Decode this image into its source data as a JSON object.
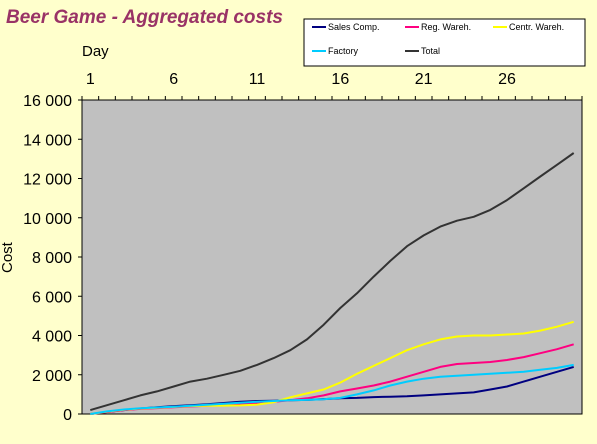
{
  "chart_data": {
    "type": "line",
    "title": "Beer Game - Aggregated  costs",
    "xlabel": "Day",
    "ylabel": "Cost",
    "x_ticks": [
      "1",
      "6",
      "11",
      "16",
      "21",
      "26"
    ],
    "y_ticks": [
      "0",
      "2 000",
      "4 000",
      "6 000",
      "8 000",
      "10 000",
      "12 000",
      "14 000",
      "16 000"
    ],
    "ylim": [
      0,
      16000
    ],
    "xlim": [
      1,
      30
    ],
    "x": [
      1,
      2,
      3,
      4,
      5,
      6,
      7,
      8,
      9,
      10,
      11,
      12,
      13,
      14,
      15,
      16,
      17,
      18,
      19,
      20,
      21,
      22,
      23,
      24,
      25,
      26,
      27,
      28,
      29,
      30
    ],
    "legend_position": "top-right",
    "series": [
      {
        "name": "Sales Comp.",
        "color": "#000080",
        "values": [
          0,
          100,
          200,
          280,
          340,
          400,
          450,
          500,
          560,
          620,
          660,
          680,
          700,
          720,
          760,
          800,
          820,
          860,
          880,
          900,
          950,
          1000,
          1050,
          1100,
          1250,
          1400,
          1650,
          1900,
          2150,
          2400
        ]
      },
      {
        "name": "Reg. Wareh.",
        "color": "#ff0080",
        "values": [
          0,
          100,
          200,
          260,
          300,
          340,
          380,
          420,
          460,
          500,
          560,
          620,
          700,
          800,
          950,
          1150,
          1300,
          1450,
          1650,
          1900,
          2150,
          2400,
          2550,
          2600,
          2650,
          2750,
          2900,
          3100,
          3300,
          3550
        ]
      },
      {
        "name": "Centr. Wareh.",
        "color": "#ffff00",
        "values": [
          0,
          120,
          220,
          280,
          320,
          360,
          400,
          420,
          430,
          440,
          480,
          600,
          850,
          1050,
          1250,
          1600,
          2050,
          2450,
          2850,
          3250,
          3550,
          3800,
          3950,
          4000,
          4000,
          4050,
          4100,
          4250,
          4450,
          4700
        ]
      },
      {
        "name": "Factory",
        "color": "#00ccff",
        "values": [
          0,
          130,
          230,
          290,
          330,
          370,
          420,
          470,
          520,
          570,
          620,
          660,
          700,
          720,
          750,
          820,
          1000,
          1200,
          1450,
          1650,
          1800,
          1900,
          1950,
          2000,
          2050,
          2100,
          2150,
          2250,
          2350,
          2500
        ]
      },
      {
        "name": "Total",
        "color": "#333333",
        "values": [
          200,
          450,
          700,
          950,
          1150,
          1400,
          1650,
          1800,
          2000,
          2200,
          2500,
          2850,
          3250,
          3800,
          4550,
          5400,
          6150,
          7000,
          7800,
          8550,
          9100,
          9550,
          9850,
          10050,
          10400,
          10900,
          11500,
          12100,
          12700,
          13300
        ]
      }
    ]
  }
}
